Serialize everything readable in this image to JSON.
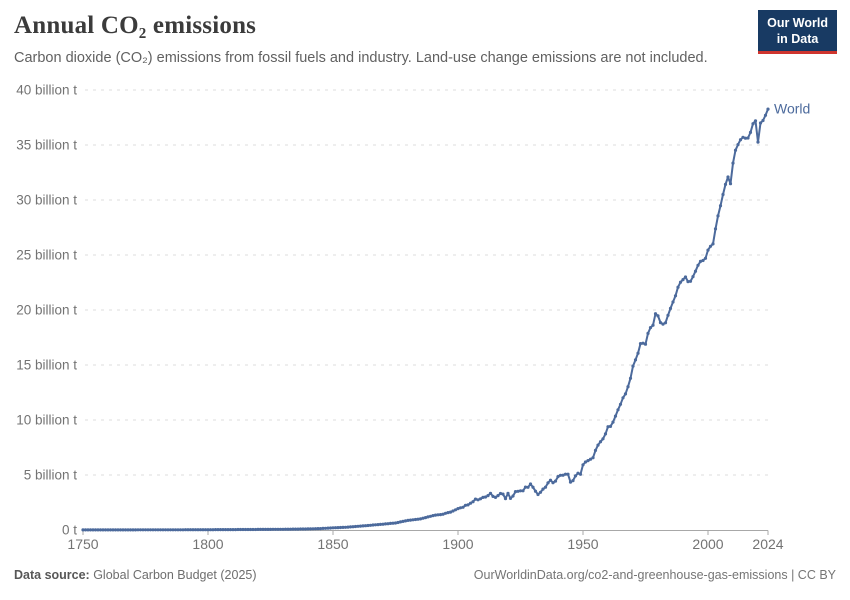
{
  "header": {
    "title": "Annual CO₂ emissions",
    "subtitle": "Carbon dioxide (CO₂) emissions from fossil fuels and industry. Land-use change emissions are not included.",
    "logo": {
      "line1": "Our World",
      "line2": "in Data"
    }
  },
  "colors": {
    "line": "#4c6a9c",
    "series_label": "#4c6a9c",
    "grid": "#dcdcdc",
    "axis": "#a8a8a8",
    "tick_text": "#737373",
    "logo_bg": "#183a63",
    "logo_accent": "#cf352e"
  },
  "chart_data": {
    "type": "line",
    "title": "Annual CO₂ emissions",
    "xlabel": "",
    "ylabel": "",
    "unit": "billion t",
    "xlim": [
      1750,
      2024
    ],
    "ylim": [
      0,
      40
    ],
    "grid": "horizontal dashed",
    "legend_position": "end-of-line label",
    "x_ticks": [
      {
        "value": 1750,
        "label": "1750"
      },
      {
        "value": 1800,
        "label": "1800"
      },
      {
        "value": 1850,
        "label": "1850"
      },
      {
        "value": 1900,
        "label": "1900"
      },
      {
        "value": 1950,
        "label": "1950"
      },
      {
        "value": 2000,
        "label": "2000"
      },
      {
        "value": 2024,
        "label": "2024"
      }
    ],
    "y_ticks": [
      {
        "value": 0,
        "label": "0 t"
      },
      {
        "value": 5,
        "label": "5 billion t"
      },
      {
        "value": 10,
        "label": "10 billion t"
      },
      {
        "value": 15,
        "label": "15 billion t"
      },
      {
        "value": 20,
        "label": "20 billion t"
      },
      {
        "value": 25,
        "label": "25 billion t"
      },
      {
        "value": 30,
        "label": "30 billion t"
      },
      {
        "value": 35,
        "label": "35 billion t"
      },
      {
        "value": 40,
        "label": "40 billion t"
      }
    ],
    "series": [
      {
        "name": "World",
        "color": "#4c6a9c",
        "points": [
          [
            1750,
            0.009
          ],
          [
            1755,
            0.01
          ],
          [
            1760,
            0.011
          ],
          [
            1765,
            0.012
          ],
          [
            1770,
            0.013
          ],
          [
            1775,
            0.015
          ],
          [
            1780,
            0.016
          ],
          [
            1785,
            0.019
          ],
          [
            1790,
            0.022
          ],
          [
            1795,
            0.026
          ],
          [
            1800,
            0.03
          ],
          [
            1805,
            0.034
          ],
          [
            1810,
            0.039
          ],
          [
            1815,
            0.045
          ],
          [
            1820,
            0.051
          ],
          [
            1825,
            0.058
          ],
          [
            1830,
            0.068
          ],
          [
            1835,
            0.08
          ],
          [
            1840,
            0.096
          ],
          [
            1845,
            0.13
          ],
          [
            1850,
            0.2
          ],
          [
            1855,
            0.25
          ],
          [
            1860,
            0.34
          ],
          [
            1865,
            0.43
          ],
          [
            1870,
            0.53
          ],
          [
            1875,
            0.64
          ],
          [
            1880,
            0.87
          ],
          [
            1885,
            1.01
          ],
          [
            1890,
            1.31
          ],
          [
            1891,
            1.35
          ],
          [
            1892,
            1.38
          ],
          [
            1893,
            1.4
          ],
          [
            1894,
            1.44
          ],
          [
            1895,
            1.52
          ],
          [
            1896,
            1.58
          ],
          [
            1897,
            1.63
          ],
          [
            1898,
            1.73
          ],
          [
            1899,
            1.84
          ],
          [
            1900,
            1.95
          ],
          [
            1901,
            2.02
          ],
          [
            1902,
            2.06
          ],
          [
            1903,
            2.25
          ],
          [
            1904,
            2.28
          ],
          [
            1905,
            2.44
          ],
          [
            1906,
            2.57
          ],
          [
            1907,
            2.81
          ],
          [
            1908,
            2.75
          ],
          [
            1909,
            2.84
          ],
          [
            1910,
            2.96
          ],
          [
            1911,
            3.0
          ],
          [
            1912,
            3.13
          ],
          [
            1913,
            3.34
          ],
          [
            1914,
            3.05
          ],
          [
            1915,
            2.96
          ],
          [
            1916,
            3.13
          ],
          [
            1917,
            3.32
          ],
          [
            1918,
            3.26
          ],
          [
            1919,
            2.85
          ],
          [
            1920,
            3.34
          ],
          [
            1921,
            2.87
          ],
          [
            1922,
            3.09
          ],
          [
            1923,
            3.49
          ],
          [
            1924,
            3.52
          ],
          [
            1925,
            3.56
          ],
          [
            1926,
            3.56
          ],
          [
            1927,
            3.9
          ],
          [
            1928,
            3.88
          ],
          [
            1929,
            4.18
          ],
          [
            1930,
            3.89
          ],
          [
            1931,
            3.53
          ],
          [
            1932,
            3.23
          ],
          [
            1933,
            3.43
          ],
          [
            1934,
            3.72
          ],
          [
            1935,
            3.89
          ],
          [
            1936,
            4.28
          ],
          [
            1937,
            4.53
          ],
          [
            1938,
            4.3
          ],
          [
            1939,
            4.45
          ],
          [
            1940,
            4.85
          ],
          [
            1941,
            4.97
          ],
          [
            1942,
            4.98
          ],
          [
            1943,
            5.07
          ],
          [
            1944,
            5.07
          ],
          [
            1945,
            4.35
          ],
          [
            1946,
            4.49
          ],
          [
            1947,
            4.92
          ],
          [
            1948,
            5.16
          ],
          [
            1949,
            5.06
          ],
          [
            1950,
            5.93
          ],
          [
            1951,
            6.18
          ],
          [
            1952,
            6.31
          ],
          [
            1953,
            6.44
          ],
          [
            1954,
            6.57
          ],
          [
            1955,
            7.24
          ],
          [
            1956,
            7.72
          ],
          [
            1957,
            8.03
          ],
          [
            1958,
            8.29
          ],
          [
            1959,
            8.74
          ],
          [
            1960,
            9.39
          ],
          [
            1961,
            9.42
          ],
          [
            1962,
            9.81
          ],
          [
            1963,
            10.35
          ],
          [
            1964,
            10.93
          ],
          [
            1965,
            11.43
          ],
          [
            1966,
            12.02
          ],
          [
            1967,
            12.37
          ],
          [
            1968,
            13.03
          ],
          [
            1969,
            13.79
          ],
          [
            1970,
            14.9
          ],
          [
            1971,
            15.46
          ],
          [
            1972,
            16.07
          ],
          [
            1973,
            16.95
          ],
          [
            1974,
            16.98
          ],
          [
            1975,
            16.89
          ],
          [
            1976,
            17.87
          ],
          [
            1977,
            18.4
          ],
          [
            1978,
            18.62
          ],
          [
            1979,
            19.66
          ],
          [
            1980,
            19.46
          ],
          [
            1981,
            18.85
          ],
          [
            1982,
            18.72
          ],
          [
            1983,
            18.84
          ],
          [
            1984,
            19.52
          ],
          [
            1985,
            20.15
          ],
          [
            1986,
            20.73
          ],
          [
            1987,
            21.29
          ],
          [
            1988,
            22.07
          ],
          [
            1989,
            22.53
          ],
          [
            1990,
            22.76
          ],
          [
            1991,
            23.0
          ],
          [
            1992,
            22.58
          ],
          [
            1993,
            22.61
          ],
          [
            1994,
            23.04
          ],
          [
            1995,
            23.53
          ],
          [
            1996,
            24.06
          ],
          [
            1997,
            24.42
          ],
          [
            1998,
            24.5
          ],
          [
            1999,
            24.7
          ],
          [
            2000,
            25.45
          ],
          [
            2001,
            25.79
          ],
          [
            2002,
            26.01
          ],
          [
            2003,
            27.37
          ],
          [
            2004,
            28.55
          ],
          [
            2005,
            29.48
          ],
          [
            2006,
            30.5
          ],
          [
            2007,
            31.42
          ],
          [
            2008,
            32.09
          ],
          [
            2009,
            31.48
          ],
          [
            2010,
            33.35
          ],
          [
            2011,
            34.53
          ],
          [
            2012,
            35.04
          ],
          [
            2013,
            35.48
          ],
          [
            2014,
            35.7
          ],
          [
            2015,
            35.62
          ],
          [
            2016,
            35.64
          ],
          [
            2017,
            36.15
          ],
          [
            2018,
            36.94
          ],
          [
            2019,
            37.2
          ],
          [
            2020,
            35.26
          ],
          [
            2021,
            37.0
          ],
          [
            2022,
            37.23
          ],
          [
            2023,
            37.7
          ],
          [
            2024,
            38.26
          ]
        ]
      }
    ]
  },
  "footer": {
    "source_label": "Data source:",
    "source_value": " Global Carbon Budget (2025)",
    "link": "OurWorldinData.org/co2-and-greenhouse-gas-emissions | CC BY"
  }
}
